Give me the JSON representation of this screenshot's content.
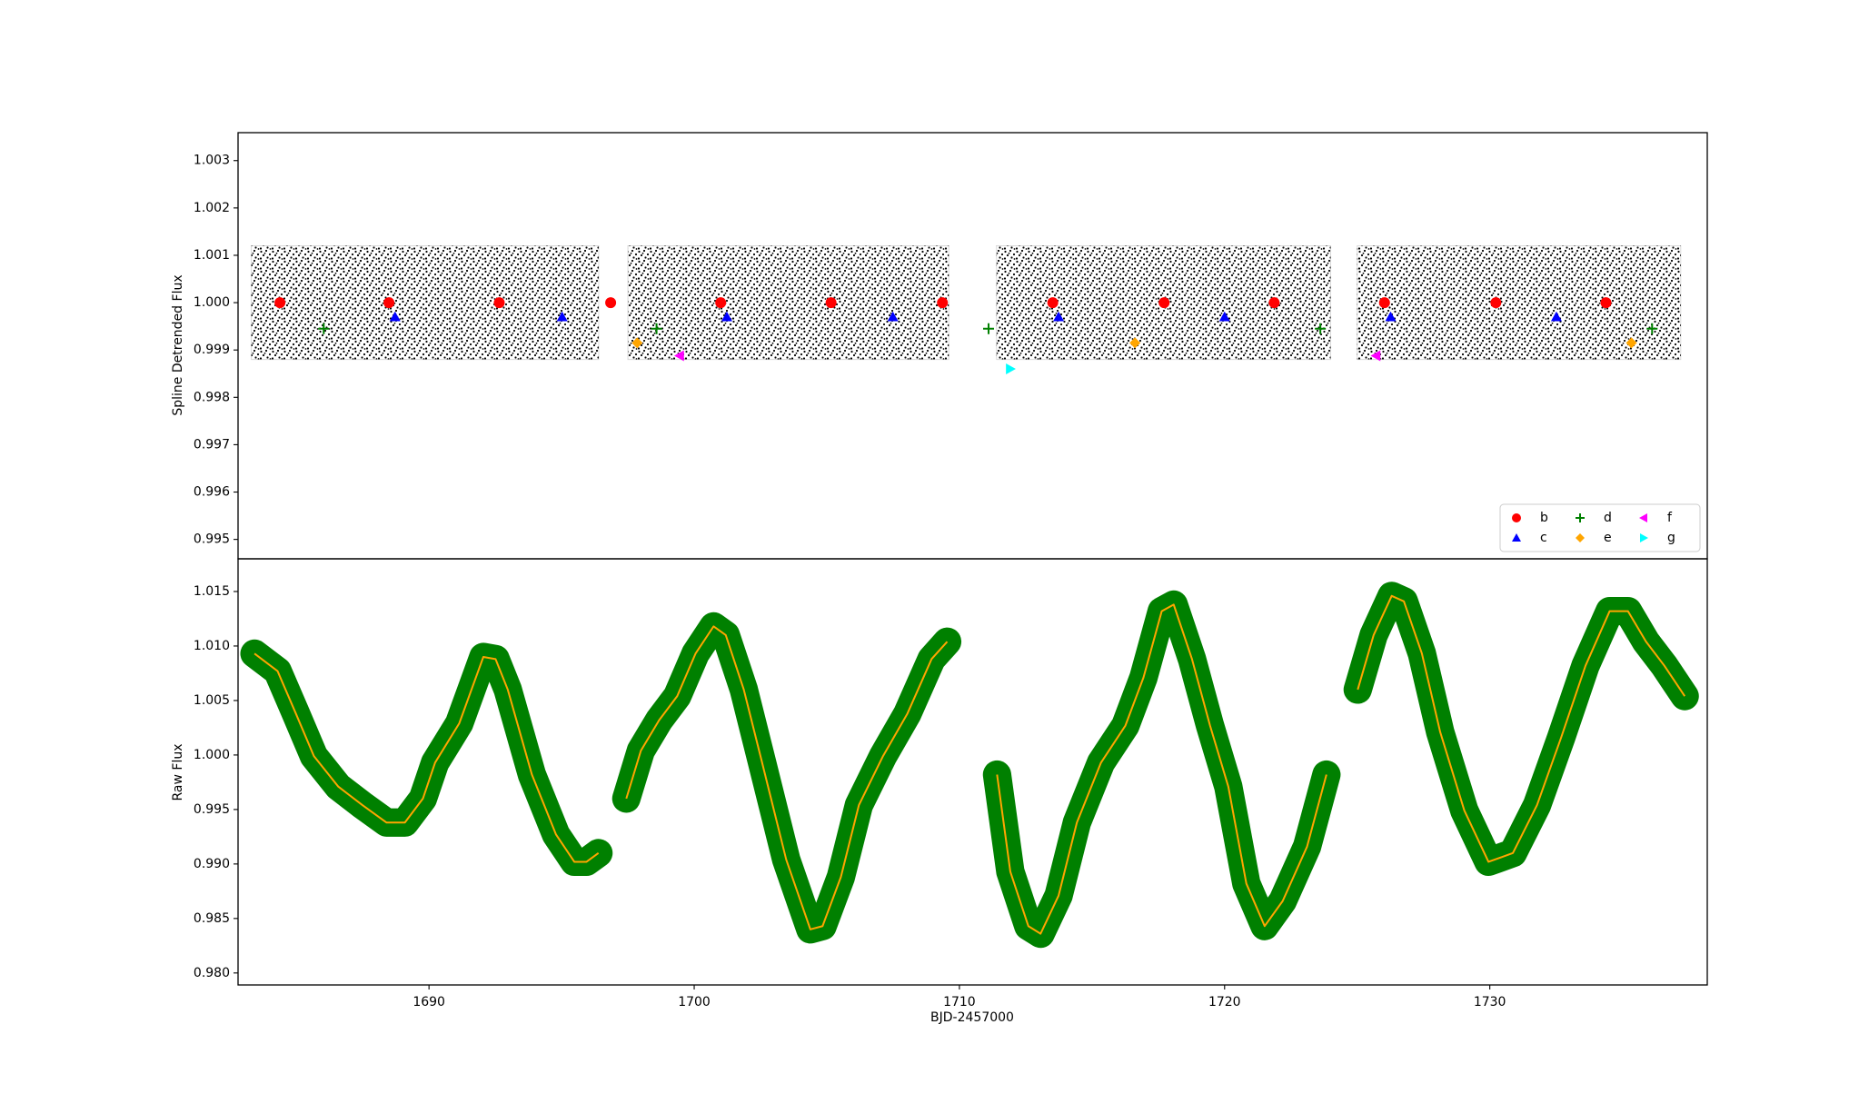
{
  "chart_data": [
    {
      "type": "scatter",
      "ylabel": "Spline Detrended Flux",
      "xlim": [
        1682.8,
        1738.2
      ],
      "ylim": [
        0.99459,
        1.00359
      ],
      "yticks": [
        0.995,
        0.996,
        0.997,
        0.998,
        0.999,
        {
          "value": 1,
          "label": "1.000"
        },
        1.001,
        1.002,
        1.003
      ],
      "bands": [
        {
          "x": [
            1683.3,
            1696.4
          ],
          "lower": [
            0.9988,
            0.9988
          ],
          "upper": [
            1.0012,
            1.0012
          ]
        },
        {
          "x": [
            1697.5,
            1709.6
          ],
          "lower": [
            0.9988,
            0.9988
          ],
          "upper": [
            1.0012,
            1.0012
          ]
        },
        {
          "x": [
            1711.4,
            1724.0
          ],
          "lower": [
            0.9988,
            0.9988
          ],
          "upper": [
            1.0012,
            1.0012
          ]
        },
        {
          "x": [
            1725.0,
            1737.2
          ],
          "lower": [
            0.9988,
            0.9988
          ],
          "upper": [
            1.0012,
            1.0012
          ]
        }
      ],
      "band_color": "#000000",
      "legend": "lower right",
      "legend_columns": 3,
      "series": [
        {
          "name": "b",
          "color": "#ff0000",
          "marker": "circle",
          "x": [
            1684.38,
            1688.49,
            1692.65,
            1696.85,
            1701.0,
            1705.16,
            1709.36,
            1713.52,
            1717.72,
            1721.87,
            1726.03,
            1730.23,
            1734.38
          ],
          "values": [
            1.0,
            1.0,
            1.0,
            1.0,
            1.0,
            1.0,
            1.0,
            1.0,
            1.0,
            1.0,
            1.0,
            1.0,
            1.0
          ]
        },
        {
          "name": "c",
          "color": "#0000ff",
          "marker": "triangle-up",
          "x": [
            1688.72,
            1695.02,
            1701.23,
            1707.49,
            1713.74,
            1720.0,
            1726.26,
            1732.51
          ],
          "values": [
            0.9997,
            0.9997,
            0.9997,
            0.9997,
            0.9997,
            0.9997,
            0.9997,
            0.9997
          ]
        },
        {
          "name": "d",
          "color": "#008000",
          "marker": "plus",
          "x": [
            1686.03,
            1698.58,
            1711.1,
            1723.61,
            1736.12
          ],
          "values": [
            0.99945,
            0.99945,
            0.99945,
            0.99945,
            0.99945
          ]
        },
        {
          "name": "e",
          "color": "#ffa500",
          "marker": "diamond",
          "x": [
            1697.85,
            1716.62,
            1735.34
          ],
          "values": [
            0.99915,
            0.99915,
            0.99915
          ]
        },
        {
          "name": "f",
          "color": "#ff00ff",
          "marker": "triangle-left",
          "x": [
            1699.45,
            1725.71
          ],
          "values": [
            0.99888,
            0.99888
          ]
        },
        {
          "name": "g",
          "color": "#00ffff",
          "marker": "triangle-right",
          "x": [
            1711.92
          ],
          "values": [
            0.9986
          ]
        }
      ]
    },
    {
      "type": "line",
      "ylabel": "Raw Flux",
      "xlabel": "BJD-2457000",
      "xlim": [
        1682.8,
        1738.2
      ],
      "ylim": [
        0.9789,
        1.018
      ],
      "xticks": [
        1690,
        1700,
        1710,
        1720,
        1730
      ],
      "yticks": [
        {
          "value": 0.98,
          "label": "0.980"
        },
        0.985,
        {
          "value": 0.99,
          "label": "0.990"
        },
        0.995,
        {
          "value": 1,
          "label": "1.000"
        },
        1.005,
        {
          "value": 1.01,
          "label": "1.010"
        },
        1.015
      ],
      "series": [
        {
          "color": "#ffa500",
          "band_color": "#008000",
          "band_halfwidth": 0.0013,
          "x": [
            1683.42,
            1684.29,
            1684.98,
            1685.66,
            1686.58,
            1687.49,
            1688.4,
            1689.09,
            1689.77,
            1690.23,
            1691.14,
            1692.05,
            1692.51,
            1692.97,
            1693.88,
            1694.79,
            1695.48,
            1695.94,
            1696.39,
            null,
            1697.44,
            1697.99,
            1698.68,
            1699.36,
            1700.05,
            1700.73,
            1701.19,
            1701.87,
            1702.56,
            1703.47,
            1704.38,
            1704.84,
            1705.53,
            1706.21,
            1707.12,
            1708.04,
            1708.95,
            1709.54,
            null,
            1711.42,
            1711.92,
            1712.6,
            1713.06,
            1713.74,
            1714.43,
            1715.34,
            1716.26,
            1716.94,
            1717.63,
            1718.08,
            1718.77,
            1719.45,
            1720.14,
            1720.82,
            1721.51,
            1722.19,
            1723.11,
            1723.84,
            null,
            1725.02,
            1725.62,
            1726.3,
            1726.76,
            1727.44,
            1728.13,
            1729.04,
            1729.95,
            1730.87,
            1731.78,
            1732.69,
            1733.61,
            1734.52,
            1735.21,
            1735.89,
            1736.58,
            1737.35
          ],
          "values": [
            1.0093,
            1.0077,
            1.0038,
            0.9999,
            0.9971,
            0.9954,
            0.9938,
            0.9938,
            0.996,
            0.9993,
            1.0029,
            1.009,
            1.0088,
            1.006,
            0.9982,
            0.9927,
            0.9902,
            0.9902,
            0.991,
            null,
            0.996,
            1.0004,
            1.0032,
            1.0054,
            1.0093,
            1.0118,
            1.011,
            1.006,
            0.9993,
            0.9904,
            0.984,
            0.9843,
            0.9888,
            0.9954,
            0.9999,
            1.0038,
            1.0088,
            1.0104,
            null,
            0.9982,
            0.9893,
            0.9843,
            0.9836,
            0.9871,
            0.9938,
            0.9993,
            1.0027,
            1.0071,
            1.0132,
            1.0138,
            1.0088,
            1.0027,
            0.9971,
            0.9882,
            0.9843,
            0.9866,
            0.9916,
            0.9982,
            null,
            1.006,
            1.011,
            1.0146,
            1.0141,
            1.0093,
            1.0021,
            0.9949,
            0.9902,
            0.991,
            0.9954,
            1.0016,
            1.0082,
            1.0132,
            1.0132,
            1.0104,
            1.0082,
            1.0054
          ]
        }
      ]
    }
  ]
}
